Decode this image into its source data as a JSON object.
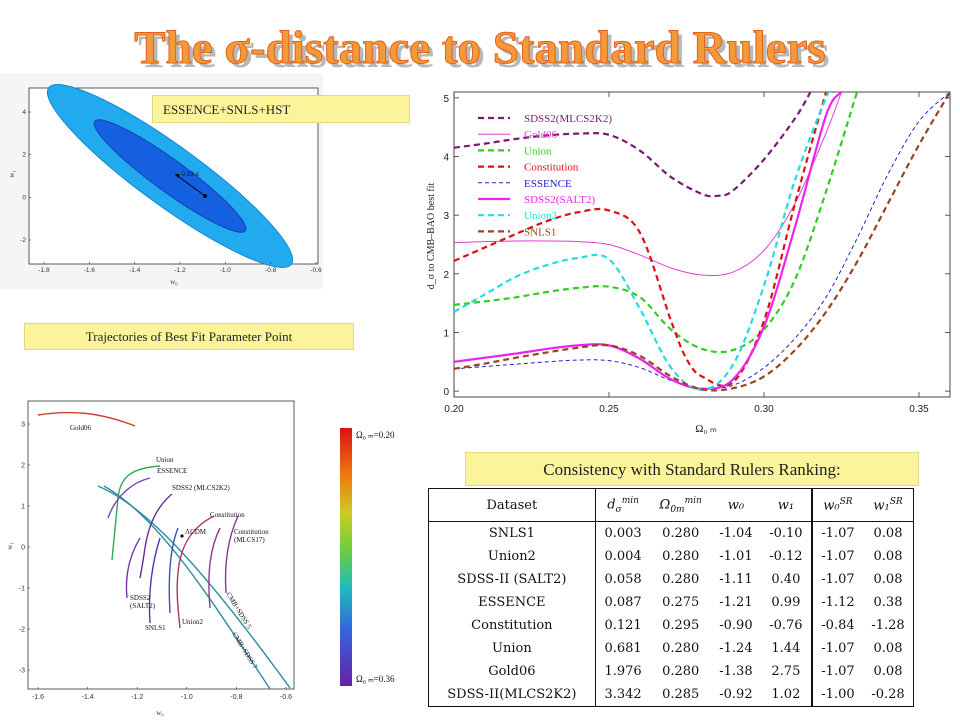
{
  "title": "The σ-distance to Standard Rulers",
  "labels": {
    "essence": "ESSENCE+SNLS+HST",
    "trajectories": "Trajectories  of Best Fit Parameter Point",
    "consistency": "Consistency with Standard Rulers Ranking:"
  },
  "ellipse_plot": {
    "xlabel": "w₀",
    "ylabel": "w₁",
    "xticks": [
      "-1.8",
      "-1.6",
      "-1.4",
      "-1.2",
      "-1.0",
      "-0.8",
      "-0.6"
    ],
    "yticks": [
      "4",
      "2",
      "0",
      "-2"
    ],
    "annotation": "0.53 σ",
    "colors": {
      "outer": "#22aaee",
      "inner": "#1560e0"
    }
  },
  "trajectory_plot": {
    "xlabel": "w₀",
    "ylabel": "w₁",
    "xticks": [
      "-1.6",
      "-1.4",
      "-1.2",
      "-1.0",
      "-0.8",
      "-0.6"
    ],
    "yticks": [
      "3",
      "2",
      "1",
      "0",
      "-1",
      "-2",
      "-3"
    ],
    "curve_labels": [
      "Gold06",
      "Union",
      "ESSENCE",
      "SDSS2 (MLCS2K2)",
      "Constitution",
      "Constitution (MLCS17)",
      "ΛCDM",
      "SDSS2 (SALT2)",
      "SNLS1",
      "Union2",
      "CMB+SDSS 5",
      "CMB+SDSS 7"
    ],
    "colorbar_top": "Ω₀ ₘ=0.20",
    "colorbar_bottom": "Ω₀ ₘ=0.36"
  },
  "chart_data": {
    "type": "line",
    "xlabel": "Ω₀ ₘ",
    "ylabel": "d_σ to CMB–BAO best fit",
    "xlim": [
      0.2,
      0.36
    ],
    "ylim": [
      -0.1,
      5.1
    ],
    "xticks": [
      "0.20",
      "0.25",
      "0.30",
      "0.35"
    ],
    "yticks": [
      "0",
      "1",
      "2",
      "3",
      "4",
      "5"
    ],
    "legend": "top-left",
    "series": [
      {
        "name": "SDSS2(MLCS2K2)",
        "color": "#7a1a78",
        "dash": "6,4",
        "width": 2.2,
        "x": [
          0.2,
          0.21,
          0.22,
          0.23,
          0.24,
          0.25,
          0.26,
          0.27,
          0.28,
          0.285,
          0.29,
          0.3,
          0.31,
          0.315
        ],
        "y": [
          4.15,
          4.22,
          4.3,
          4.36,
          4.39,
          4.37,
          4.1,
          3.65,
          3.36,
          3.33,
          3.42,
          3.95,
          4.65,
          5.1
        ]
      },
      {
        "name": "Gold06",
        "color": "#e040d0",
        "dash": "",
        "width": 1,
        "x": [
          0.2,
          0.21,
          0.22,
          0.23,
          0.24,
          0.25,
          0.26,
          0.27,
          0.28,
          0.29,
          0.3,
          0.31,
          0.32,
          0.325
        ],
        "y": [
          2.53,
          2.55,
          2.56,
          2.56,
          2.55,
          2.5,
          2.32,
          2.1,
          1.98,
          2.03,
          2.4,
          3.2,
          4.4,
          5.1
        ]
      },
      {
        "name": "Union",
        "color": "#33cc22",
        "dash": "6,4",
        "width": 2.2,
        "x": [
          0.2,
          0.21,
          0.22,
          0.23,
          0.24,
          0.25,
          0.26,
          0.27,
          0.28,
          0.29,
          0.3,
          0.31,
          0.32,
          0.33
        ],
        "y": [
          1.47,
          1.53,
          1.6,
          1.69,
          1.76,
          1.78,
          1.6,
          1.05,
          0.72,
          0.7,
          1.05,
          1.9,
          3.4,
          5.1
        ]
      },
      {
        "name": "Constitution",
        "color": "#dd1111",
        "dash": "6,4",
        "width": 2.2,
        "x": [
          0.2,
          0.21,
          0.22,
          0.23,
          0.24,
          0.25,
          0.26,
          0.27,
          0.275,
          0.28,
          0.29,
          0.3,
          0.31,
          0.32
        ],
        "y": [
          2.22,
          2.45,
          2.68,
          2.9,
          3.05,
          3.08,
          2.7,
          1.2,
          0.55,
          0.25,
          0.15,
          1.2,
          3.2,
          5.1
        ]
      },
      {
        "name": "ESSENCE",
        "color": "#2222cc",
        "dash": "4,3",
        "width": 1,
        "x": [
          0.2,
          0.21,
          0.22,
          0.23,
          0.24,
          0.25,
          0.26,
          0.27,
          0.28,
          0.29,
          0.3,
          0.31,
          0.32,
          0.33,
          0.34,
          0.35,
          0.36
        ],
        "y": [
          0.38,
          0.42,
          0.46,
          0.5,
          0.53,
          0.52,
          0.4,
          0.18,
          0.05,
          0.1,
          0.4,
          0.9,
          1.6,
          2.6,
          3.7,
          4.6,
          5.1
        ]
      },
      {
        "name": "SDSS2(SALT2)",
        "color": "#ee22ee",
        "dash": "",
        "width": 2.2,
        "x": [
          0.2,
          0.21,
          0.22,
          0.23,
          0.24,
          0.25,
          0.26,
          0.27,
          0.28,
          0.29,
          0.3,
          0.31,
          0.32,
          0.325
        ],
        "y": [
          0.5,
          0.57,
          0.64,
          0.72,
          0.78,
          0.78,
          0.55,
          0.2,
          0.04,
          0.2,
          1.1,
          2.8,
          4.7,
          5.1
        ]
      },
      {
        "name": "Union2",
        "color": "#22dddd",
        "dash": "6,4",
        "width": 2.2,
        "x": [
          0.2,
          0.21,
          0.22,
          0.23,
          0.24,
          0.25,
          0.26,
          0.27,
          0.28,
          0.29,
          0.3,
          0.31,
          0.32,
          0.322
        ],
        "y": [
          1.35,
          1.65,
          1.95,
          2.15,
          2.27,
          2.25,
          1.4,
          0.4,
          0.02,
          0.45,
          1.8,
          3.6,
          5.0,
          5.1
        ]
      },
      {
        "name": "SNLS1",
        "color": "#994422",
        "dash": "6,4",
        "width": 2.2,
        "x": [
          0.2,
          0.21,
          0.22,
          0.23,
          0.24,
          0.25,
          0.26,
          0.27,
          0.28,
          0.29,
          0.3,
          0.31,
          0.32,
          0.33,
          0.34,
          0.35,
          0.36
        ],
        "y": [
          0.38,
          0.47,
          0.57,
          0.66,
          0.74,
          0.78,
          0.6,
          0.25,
          0.03,
          0.05,
          0.25,
          0.7,
          1.35,
          2.2,
          3.2,
          4.2,
          5.1
        ]
      }
    ]
  },
  "ranking_table": {
    "headers": [
      "Dataset",
      "d_σ^min",
      "Ω_0m^min",
      "w₀",
      "w₁",
      "w₀^SR",
      "w₁^SR"
    ],
    "rows": [
      [
        "SNLS1",
        "0.003",
        "0.280",
        "-1.04",
        "-0.10",
        "-1.07",
        "0.08"
      ],
      [
        "Union2",
        "0.004",
        "0.280",
        "-1.01",
        "-0.12",
        "-1.07",
        "0.08"
      ],
      [
        "SDSS-II (SALT2)",
        "0.058",
        "0.280",
        "-1.11",
        "0.40",
        "-1.07",
        "0.08"
      ],
      [
        "ESSENCE",
        "0.087",
        "0.275",
        "-1.21",
        "0.99",
        "-1.12",
        "0.38"
      ],
      [
        "Constitution",
        "0.121",
        "0.295",
        "-0.90",
        "-0.76",
        "-0.84",
        "-1.28"
      ],
      [
        "Union",
        "0.681",
        "0.280",
        "-1.24",
        "1.44",
        "-1.07",
        "0.08"
      ],
      [
        "Gold06",
        "1.976",
        "0.280",
        "-1.38",
        "2.75",
        "-1.07",
        "0.08"
      ],
      [
        "SDSS-II(MLCS2K2)",
        "3.342",
        "0.285",
        "-0.92",
        "1.02",
        "-1.00",
        "-0.28"
      ]
    ]
  }
}
